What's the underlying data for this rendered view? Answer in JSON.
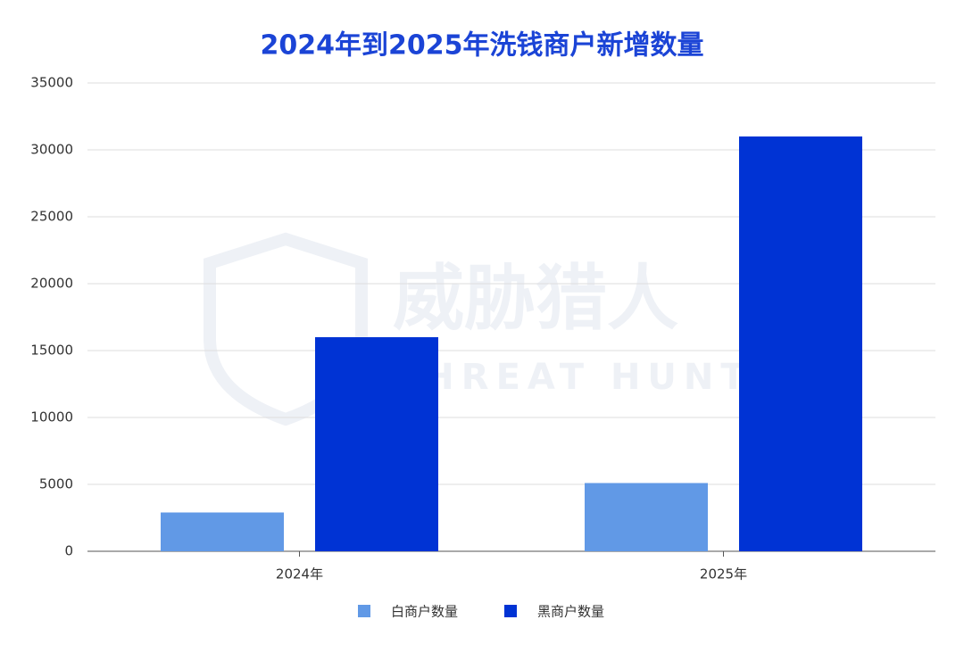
{
  "chart_data": {
    "type": "bar",
    "title": "2024年到2025年洗钱商户新增数量",
    "categories": [
      "2024年",
      "2025年"
    ],
    "series": [
      {
        "name": "白商户数量",
        "color": "#6199e6",
        "values": [
          2900,
          5100
        ]
      },
      {
        "name": "黑商户数量",
        "color": "#0033d4",
        "values": [
          16000,
          31000
        ]
      }
    ],
    "ylim": [
      0,
      35000
    ],
    "yticks": [
      0,
      5000,
      10000,
      15000,
      20000,
      25000,
      30000,
      35000
    ],
    "grid": true,
    "legend": "bottom",
    "watermark": [
      "威胁猎人",
      "THREAT HUNTER"
    ]
  }
}
